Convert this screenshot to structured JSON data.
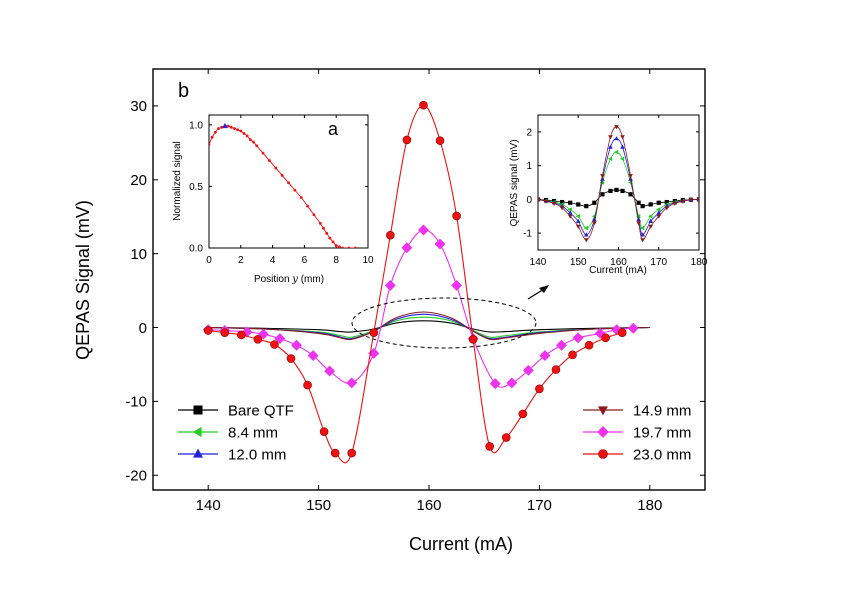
{
  "chart_data": [
    {
      "type": "line",
      "panel_label": "b",
      "xlabel": "Current (mA)",
      "ylabel": "QEPAS Signal (mV)",
      "xlim": [
        135,
        185
      ],
      "ylim": [
        -22,
        35
      ],
      "xticks": [
        140,
        150,
        160,
        170,
        180
      ],
      "yticks": [
        -20,
        -10,
        0,
        10,
        20,
        30
      ],
      "grid": false,
      "legend_placement": "bottom-left and bottom-right",
      "series": [
        {
          "name": "Bare QTF",
          "color": "#000000",
          "marker": "square",
          "x": [
            140,
            145,
            150,
            152,
            153,
            155,
            157,
            159.5,
            162,
            164,
            165.5,
            167,
            170,
            175,
            180
          ],
          "y": [
            0,
            -0.1,
            -0.3,
            -0.55,
            -0.6,
            -0.2,
            0.6,
            0.9,
            0.6,
            -0.2,
            -0.6,
            -0.55,
            -0.3,
            -0.1,
            0
          ]
        },
        {
          "name": "8.4 mm",
          "color": "#22cc22",
          "marker": "triangle-left",
          "x": [
            140,
            145,
            150,
            152,
            153,
            155,
            157,
            159.5,
            162,
            164,
            165.5,
            167,
            170,
            175,
            180
          ],
          "y": [
            0,
            -0.2,
            -0.6,
            -1.1,
            -1.3,
            -0.4,
            0.9,
            1.4,
            0.9,
            -0.4,
            -1.3,
            -1.1,
            -0.6,
            -0.2,
            0
          ]
        },
        {
          "name": "12.0 mm",
          "color": "#2222dd",
          "marker": "triangle-up",
          "x": [
            140,
            145,
            150,
            152,
            153,
            155,
            157,
            159.5,
            162,
            164,
            165.5,
            167,
            170,
            175,
            180
          ],
          "y": [
            0,
            -0.2,
            -0.7,
            -1.3,
            -1.5,
            -0.5,
            1.1,
            1.8,
            1.1,
            -0.5,
            -1.5,
            -1.3,
            -0.7,
            -0.2,
            0
          ]
        },
        {
          "name": "14.9 mm",
          "color": "#8b1a1a",
          "marker": "triangle-down",
          "x": [
            140,
            145,
            150,
            152,
            153,
            155,
            157,
            159.5,
            162,
            164,
            165.5,
            167,
            170,
            175,
            180
          ],
          "y": [
            0,
            -0.2,
            -0.8,
            -1.4,
            -1.6,
            -0.5,
            1.3,
            2.1,
            1.3,
            -0.5,
            -1.6,
            -1.4,
            -0.8,
            -0.2,
            0
          ]
        },
        {
          "name": "19.7 mm",
          "color": "#ee33ee",
          "marker": "diamond",
          "x": [
            140,
            141.5,
            143.5,
            145,
            146.5,
            148,
            149.5,
            151,
            153,
            155,
            156.5,
            158,
            159.5,
            161,
            162.5,
            164,
            166,
            167.5,
            169,
            170.5,
            172,
            173.5,
            175.5,
            177,
            178.5
          ],
          "y": [
            -0.3,
            -0.4,
            -0.6,
            -0.9,
            -1.5,
            -2.4,
            -3.8,
            -5.9,
            -7.5,
            -3.5,
            5.7,
            10.8,
            13.2,
            11.3,
            5.7,
            -1.5,
            -7.6,
            -7.5,
            -5.8,
            -3.8,
            -2.4,
            -1.4,
            -0.8,
            -0.3,
            -0.1
          ]
        },
        {
          "name": "23.0 mm",
          "color": "#ee1111",
          "marker": "circle",
          "x": [
            140,
            141.5,
            143,
            144.5,
            146,
            147.5,
            149,
            150.5,
            151.5,
            153,
            155,
            156.5,
            158,
            159.5,
            161,
            162.5,
            164,
            165.5,
            167,
            168.5,
            170,
            171.5,
            173,
            174.5,
            176,
            177.5
          ],
          "y": [
            -0.4,
            -0.7,
            -1.0,
            -1.6,
            -2.3,
            -4.2,
            -7.8,
            -14.1,
            -17.0,
            -17.0,
            -0.7,
            12.5,
            25.4,
            30.1,
            25.3,
            15.1,
            -1.6,
            -16.1,
            -14.9,
            -11.7,
            -8.3,
            -5.7,
            -3.7,
            -2.4,
            -1.4,
            -0.7
          ]
        }
      ],
      "legend": {
        "left": [
          "Bare QTF",
          "8.4 mm",
          "12.0 mm"
        ],
        "right": [
          "14.9 mm",
          "19.7 mm",
          "23.0 mm"
        ]
      }
    },
    {
      "type": "line",
      "panel_label": "a",
      "xlabel_prefix": "Position ",
      "xlabel_var": "y",
      "xlabel_suffix": " (mm)",
      "ylabel": "Normalized signal",
      "xlim": [
        0,
        10
      ],
      "ylim": [
        0.0,
        1.08
      ],
      "xticks": [
        0,
        2,
        4,
        6,
        8,
        10
      ],
      "yticks": [
        0.0,
        0.5,
        1.0
      ],
      "ytick_labels": [
        "0.0",
        "0.5",
        "1.0"
      ],
      "series": [
        {
          "color": "#ee1111",
          "x": [
            0,
            0.2,
            0.4,
            0.6,
            0.8,
            1.0,
            1.2,
            1.4,
            1.6,
            1.8,
            2.0,
            2.2,
            2.4,
            2.6,
            2.8,
            3.0,
            3.4,
            3.8,
            4.2,
            4.6,
            5.0,
            5.4,
            5.8,
            6.2,
            6.6,
            7.0,
            7.2,
            7.4,
            7.6,
            7.8,
            8.0,
            8.2,
            8.4,
            8.8,
            9.2
          ],
          "y": [
            0.84,
            0.9,
            0.94,
            0.97,
            0.98,
            0.99,
            0.99,
            0.98,
            0.97,
            0.96,
            0.95,
            0.93,
            0.91,
            0.88,
            0.86,
            0.83,
            0.77,
            0.71,
            0.65,
            0.59,
            0.53,
            0.47,
            0.41,
            0.34,
            0.27,
            0.2,
            0.16,
            0.12,
            0.08,
            0.05,
            0.02,
            0.01,
            0.0,
            0.0,
            0.0
          ]
        }
      ],
      "highlight_point": {
        "x": 1.0,
        "y": 0.99,
        "color": "#2222dd"
      }
    },
    {
      "type": "line",
      "xlabel": "Current (mA)",
      "ylabel": "QEPAS signal (mV)",
      "xlim": [
        140,
        180
      ],
      "ylim": [
        -1.5,
        2.5
      ],
      "xticks": [
        140,
        150,
        160,
        170,
        180
      ],
      "yticks": [
        -1,
        0,
        1,
        2
      ],
      "series": [
        {
          "name": "Bare QTF",
          "color": "#000000",
          "marker": "square",
          "x": [
            140,
            142,
            144,
            146,
            148,
            150,
            152,
            154,
            156,
            158,
            159.5,
            161,
            163,
            165,
            166,
            168,
            170,
            172,
            174,
            176,
            178,
            180
          ],
          "y": [
            0,
            -0.02,
            -0.05,
            -0.08,
            -0.1,
            -0.15,
            -0.2,
            -0.1,
            0.15,
            0.25,
            0.28,
            0.25,
            0.15,
            -0.1,
            -0.2,
            -0.15,
            -0.1,
            -0.08,
            -0.05,
            -0.02,
            -0.01,
            0
          ]
        },
        {
          "name": "8.4 mm",
          "color": "#22cc22",
          "marker": "triangle-left",
          "x": [
            140,
            142,
            144,
            146,
            148,
            150,
            152,
            154,
            156,
            158,
            159.5,
            161,
            163,
            165,
            166,
            168,
            170,
            172,
            174,
            176,
            178,
            180
          ],
          "y": [
            0,
            -0.04,
            -0.08,
            -0.15,
            -0.3,
            -0.5,
            -0.85,
            -0.5,
            0.5,
            1.2,
            1.4,
            1.2,
            0.5,
            -0.5,
            -0.85,
            -0.5,
            -0.3,
            -0.15,
            -0.08,
            -0.04,
            -0.01,
            0
          ]
        },
        {
          "name": "12.0 mm",
          "color": "#2222dd",
          "marker": "triangle-up",
          "x": [
            140,
            142,
            144,
            146,
            148,
            150,
            152,
            154,
            156,
            158,
            159.5,
            161,
            163,
            165,
            166,
            168,
            170,
            172,
            174,
            176,
            178,
            180
          ],
          "y": [
            0,
            -0.05,
            -0.1,
            -0.2,
            -0.4,
            -0.65,
            -1.05,
            -0.6,
            0.6,
            1.55,
            1.8,
            1.55,
            0.6,
            -0.6,
            -1.05,
            -0.65,
            -0.4,
            -0.2,
            -0.1,
            -0.05,
            -0.01,
            0
          ]
        },
        {
          "name": "14.9 mm",
          "color": "#8b1a1a",
          "marker": "triangle-down",
          "x": [
            140,
            142,
            144,
            146,
            148,
            150,
            152,
            154,
            156,
            158,
            159.5,
            161,
            163,
            165,
            166,
            168,
            170,
            172,
            174,
            176,
            178,
            180
          ],
          "y": [
            0,
            -0.06,
            -0.12,
            -0.25,
            -0.5,
            -0.8,
            -1.2,
            -0.7,
            0.7,
            1.85,
            2.15,
            1.85,
            0.7,
            -0.7,
            -1.2,
            -0.8,
            -0.5,
            -0.25,
            -0.12,
            -0.06,
            -0.01,
            0
          ]
        }
      ]
    }
  ]
}
